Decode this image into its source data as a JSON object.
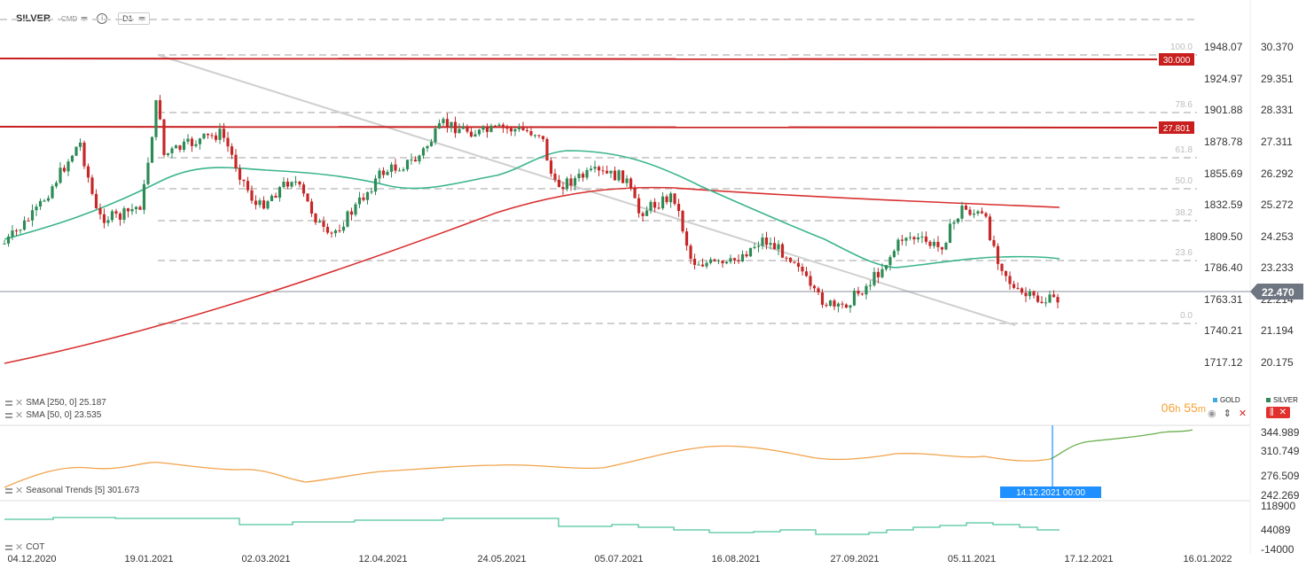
{
  "toolbar": {
    "symbol": "SILVER",
    "exchange": "CMD",
    "timeframe": "D1"
  },
  "axes": {
    "price_left": [
      "1948.07",
      "1924.97",
      "1901.88",
      "1878.78",
      "1855.69",
      "1832.59",
      "1809.50",
      "1786.40",
      "1763.31",
      "1740.21",
      "1717.12"
    ],
    "price_right": [
      "30.370",
      "29.351",
      "28.331",
      "27.311",
      "26.292",
      "25.272",
      "24.253",
      "23.233",
      "22.214",
      "21.194",
      "20.175"
    ],
    "fib_levels": [
      "100.0",
      "78.6",
      "61.8",
      "50.0",
      "38.2",
      "23.6",
      "0.0"
    ],
    "seasonal_axis": [
      "344.989",
      "310.749",
      "276.509",
      "242.269"
    ],
    "cot_axis": [
      "118900",
      "44089",
      "-14000"
    ],
    "dates": [
      "04.12.2020",
      "19.01.2021",
      "02.03.2021",
      "12.04.2021",
      "24.05.2021",
      "05.07.2021",
      "16.08.2021",
      "27.09.2021",
      "05.11.2021",
      "17.12.2021",
      "16.01.2022"
    ]
  },
  "levels": {
    "high": "30.000",
    "mid": "27.801",
    "current_price": "22.470"
  },
  "indicators": {
    "sma250": "SMA [250,  0] 25.187",
    "sma50": "SMA [50,  0] 23.535",
    "seasonal": "Seasonal  Trends [5] 301.673",
    "cot": "COT"
  },
  "overlay": {
    "timer_h": "06",
    "timer_h_unit": "h",
    "timer_m": "55",
    "timer_m_unit": "m",
    "gold_label": "GOLD",
    "silver_label": "SILVER",
    "crosshair_time": "14.12.2021 00:00"
  },
  "colors": {
    "sma250": "#d93030",
    "sma50": "#3bb48c",
    "resistance": "#c81e1e",
    "seasonal": "#f2a24a",
    "seasonal_future": "#6ab04c",
    "cot": "#4fc3a1",
    "up": "#2e8b57",
    "down": "#c62828",
    "timer": "#f7a135",
    "crosshair": "#1e90ff"
  }
}
